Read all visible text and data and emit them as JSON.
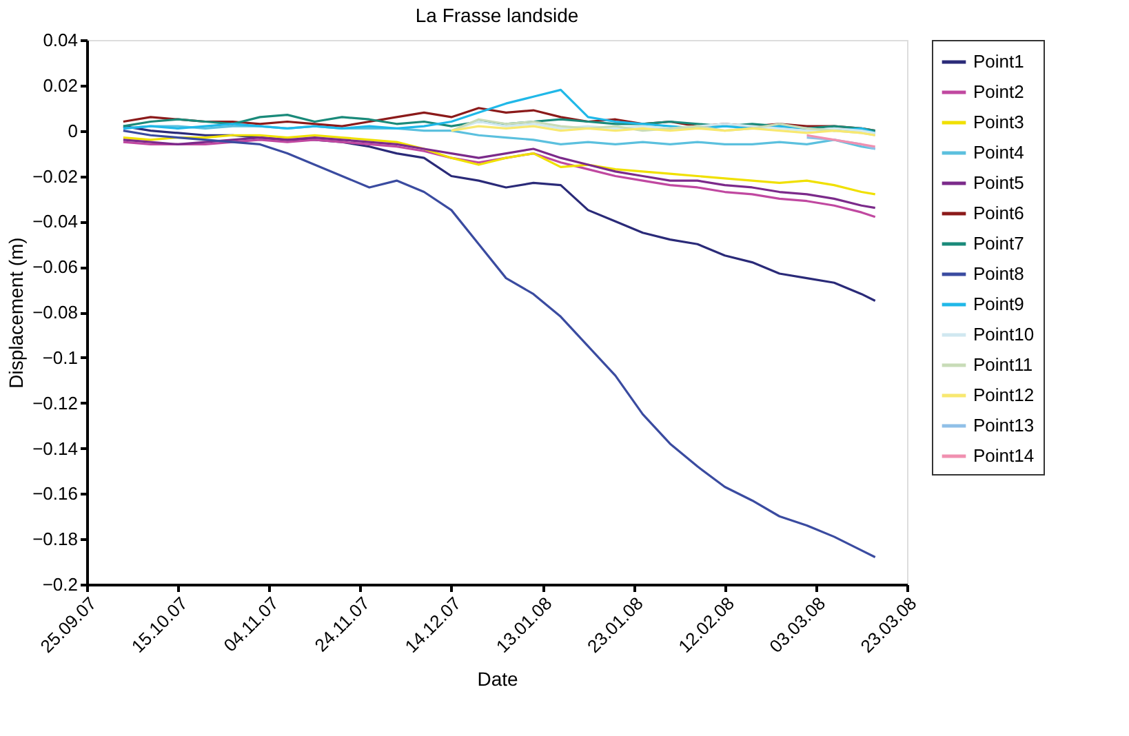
{
  "chart_data": {
    "type": "line",
    "title": "La Frasse landside",
    "xlabel": "Date",
    "ylabel": "Displacement (m)",
    "x": [
      "2007-10-03",
      "2007-10-09",
      "2007-10-15",
      "2007-10-21",
      "2007-10-27",
      "2007-11-02",
      "2007-11-08",
      "2007-11-14",
      "2007-11-20",
      "2007-11-26",
      "2007-12-02",
      "2007-12-08",
      "2007-12-14",
      "2007-12-20",
      "2007-12-26",
      "2008-01-01",
      "2008-01-07",
      "2008-01-13",
      "2008-01-19",
      "2008-01-25",
      "2008-01-31",
      "2008-02-06",
      "2008-02-12",
      "2008-02-18",
      "2008-02-24",
      "2008-03-01",
      "2008-03-07",
      "2008-03-13",
      "2008-03-16"
    ],
    "xlim": [
      "2007-09-25",
      "2008-03-23"
    ],
    "xticks": [
      {
        "value": "2007-09-25",
        "label": "25.09.07"
      },
      {
        "value": "2007-10-15",
        "label": "15.10.07"
      },
      {
        "value": "2007-11-04",
        "label": "04.11.07"
      },
      {
        "value": "2007-11-24",
        "label": "24.11.07"
      },
      {
        "value": "2007-12-14",
        "label": "14.12.07"
      },
      {
        "value": "2008-01-03",
        "label": "13.01.08"
      },
      {
        "value": "2008-01-23",
        "label": "23.01.08"
      },
      {
        "value": "2008-02-12",
        "label": "12.02.08"
      },
      {
        "value": "2008-03-03",
        "label": "03.03.08"
      },
      {
        "value": "2008-03-23",
        "label": "23.03.08"
      }
    ],
    "ylim": [
      -0.2,
      0.04
    ],
    "yticks": [
      {
        "value": 0.04,
        "label": "0.04"
      },
      {
        "value": 0.02,
        "label": "0.02"
      },
      0,
      {
        "value": -0.02,
        "label": "−0.02"
      },
      {
        "value": -0.04,
        "label": "−0.04"
      },
      {
        "value": -0.06,
        "label": "−0.06"
      },
      {
        "value": -0.08,
        "label": "−0.08"
      },
      {
        "value": -0.1,
        "label": "−0.1"
      },
      {
        "value": -0.12,
        "label": "−0.12"
      },
      {
        "value": -0.14,
        "label": "−0.14"
      },
      {
        "value": -0.16,
        "label": "−0.16"
      },
      {
        "value": -0.18,
        "label": "−0.18"
      },
      {
        "value": -0.2,
        "label": "−0.2"
      }
    ],
    "grid": false,
    "legend": "right",
    "marker": "none",
    "line_style": "solid",
    "series": [
      {
        "name": "Point1",
        "color": "#2a2a78",
        "values": [
          0.002,
          0,
          -0.001,
          -0.002,
          -0.002,
          -0.003,
          -0.004,
          -0.004,
          -0.005,
          -0.007,
          -0.01,
          -0.012,
          -0.02,
          -0.022,
          -0.025,
          -0.023,
          -0.024,
          -0.035,
          -0.04,
          -0.045,
          -0.048,
          -0.05,
          -0.055,
          -0.058,
          -0.063,
          -0.065,
          -0.067,
          -0.072,
          -0.075
        ]
      },
      {
        "name": "Point2",
        "color": "#c048a0",
        "values": [
          -0.005,
          -0.006,
          -0.006,
          -0.006,
          -0.005,
          -0.004,
          -0.005,
          -0.004,
          -0.005,
          -0.006,
          -0.007,
          -0.009,
          -0.012,
          -0.014,
          -0.012,
          -0.01,
          -0.014,
          -0.017,
          -0.02,
          -0.022,
          -0.024,
          -0.025,
          -0.027,
          -0.028,
          -0.03,
          -0.031,
          -0.033,
          -0.036,
          -0.038
        ]
      },
      {
        "name": "Point3",
        "color": "#f0e000",
        "values": [
          -0.003,
          -0.004,
          -0.003,
          -0.003,
          -0.002,
          -0.002,
          -0.003,
          -0.002,
          -0.003,
          -0.004,
          -0.005,
          -0.008,
          -0.012,
          -0.015,
          -0.012,
          -0.01,
          -0.016,
          -0.015,
          -0.017,
          -0.018,
          -0.019,
          -0.02,
          -0.021,
          -0.022,
          -0.023,
          -0.022,
          -0.024,
          -0.027,
          -0.028
        ]
      },
      {
        "name": "Point4",
        "color": "#5bc0de",
        "values": [
          0.001,
          0.002,
          0.002,
          0.001,
          0.002,
          0.002,
          0.001,
          0.002,
          0.001,
          0.001,
          0.001,
          0,
          0,
          -0.002,
          -0.003,
          -0.004,
          -0.006,
          -0.005,
          -0.006,
          -0.005,
          -0.006,
          -0.005,
          -0.006,
          -0.006,
          -0.005,
          -0.006,
          -0.004,
          -0.007,
          -0.008
        ]
      },
      {
        "name": "Point5",
        "color": "#7b2a8a",
        "values": [
          -0.004,
          -0.005,
          -0.006,
          -0.005,
          -0.004,
          -0.003,
          -0.004,
          -0.003,
          -0.004,
          -0.005,
          -0.006,
          -0.008,
          -0.01,
          -0.012,
          -0.01,
          -0.008,
          -0.012,
          -0.015,
          -0.018,
          -0.02,
          -0.022,
          -0.022,
          -0.024,
          -0.025,
          -0.027,
          -0.028,
          -0.03,
          -0.033,
          -0.034
        ]
      },
      {
        "name": "Point6",
        "color": "#8b1a1a",
        "values": [
          0.004,
          0.006,
          0.005,
          0.004,
          0.004,
          0.003,
          0.004,
          0.003,
          0.002,
          0.004,
          0.006,
          0.008,
          0.006,
          0.01,
          0.008,
          0.009,
          0.006,
          0.004,
          0.005,
          0.003,
          0.004,
          0.002,
          0.003,
          0.002,
          0.003,
          0.002,
          0.002,
          0.001,
          0
        ]
      },
      {
        "name": "Point7",
        "color": "#1a8a7a",
        "values": [
          0.002,
          0.004,
          0.005,
          0.004,
          0.003,
          0.006,
          0.007,
          0.004,
          0.006,
          0.005,
          0.003,
          0.004,
          0.002,
          0.004,
          0.003,
          0.004,
          0.005,
          0.004,
          0.003,
          0.003,
          0.004,
          0.003,
          0.002,
          0.003,
          0.002,
          0.001,
          0.002,
          0.001,
          0
        ]
      },
      {
        "name": "Point8",
        "color": "#3a4ba0",
        "values": [
          0,
          -0.002,
          -0.003,
          -0.004,
          -0.005,
          -0.006,
          -0.01,
          -0.015,
          -0.02,
          -0.025,
          -0.022,
          -0.027,
          -0.035,
          -0.05,
          -0.065,
          -0.072,
          -0.082,
          -0.095,
          -0.108,
          -0.125,
          -0.138,
          -0.148,
          -0.157,
          -0.163,
          -0.17,
          -0.174,
          -0.179,
          -0.185,
          -0.188
        ]
      },
      {
        "name": "Point9",
        "color": "#20b8e8",
        "values": [
          0.001,
          0.002,
          0.001,
          0.002,
          0.003,
          0.002,
          0.001,
          0.002,
          0.001,
          0.002,
          0.001,
          0.002,
          0.004,
          0.008,
          0.012,
          0.015,
          0.018,
          0.006,
          0.004,
          0.003,
          0.002,
          0.001,
          0.002,
          0.001,
          0.002,
          0.001,
          0,
          0.001,
          -0.001
        ]
      },
      {
        "name": "Point10",
        "color": "#d0e8f0",
        "values": [
          null,
          null,
          null,
          null,
          null,
          null,
          null,
          null,
          null,
          null,
          null,
          null,
          0,
          0.004,
          0.002,
          0.003,
          0.001,
          0.002,
          0.001,
          0.002,
          0.001,
          0.002,
          0.003,
          0.002,
          0.001,
          0,
          0.001,
          0,
          -0.001
        ]
      },
      {
        "name": "Point11",
        "color": "#c8dcb8",
        "values": [
          null,
          null,
          null,
          null,
          null,
          null,
          null,
          null,
          null,
          null,
          null,
          null,
          0,
          0.005,
          0.003,
          0.004,
          0.002,
          0.001,
          0.002,
          0,
          0.001,
          0.002,
          0,
          0.001,
          0.003,
          0.001,
          0,
          -0.001,
          -0.002
        ]
      },
      {
        "name": "Point12",
        "color": "#f8e870",
        "values": [
          null,
          null,
          null,
          null,
          null,
          null,
          null,
          null,
          null,
          null,
          null,
          null,
          0,
          0.002,
          0.001,
          0.002,
          0,
          0.001,
          0,
          0.001,
          0,
          0.001,
          0,
          0.001,
          0,
          -0.001,
          0,
          -0.001,
          -0.002
        ]
      },
      {
        "name": "Point13",
        "color": "#90c0e8",
        "values": [
          null,
          null,
          null,
          null,
          null,
          null,
          null,
          null,
          null,
          null,
          null,
          null,
          null,
          null,
          null,
          null,
          null,
          null,
          null,
          null,
          null,
          null,
          null,
          null,
          null,
          -0.003,
          -0.004,
          -0.006,
          -0.008
        ]
      },
      {
        "name": "Point14",
        "color": "#f090b0",
        "values": [
          null,
          null,
          null,
          null,
          null,
          null,
          null,
          null,
          null,
          null,
          null,
          null,
          null,
          null,
          null,
          null,
          null,
          null,
          null,
          null,
          null,
          null,
          null,
          null,
          null,
          -0.002,
          -0.004,
          -0.006,
          -0.007
        ]
      }
    ]
  }
}
